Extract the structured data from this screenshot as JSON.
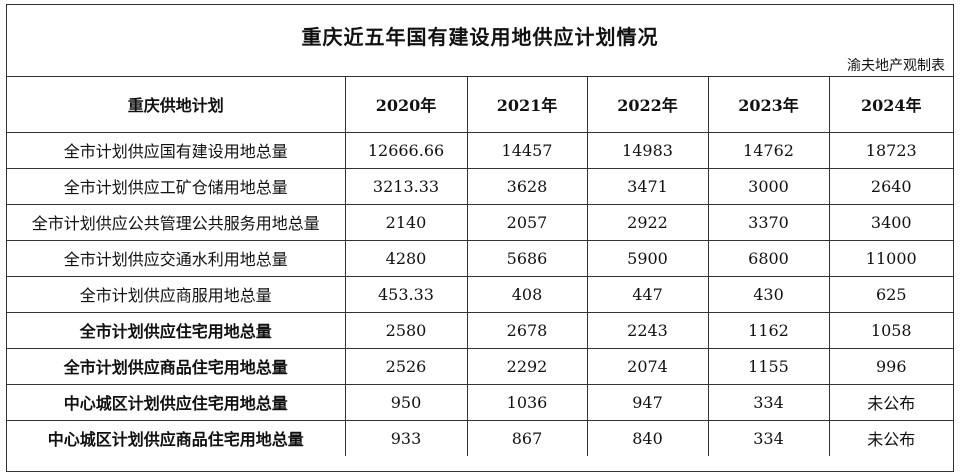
{
  "header": {
    "title": "重庆近五年国有建设用地供应计划情况",
    "credit": "渝夫地产观制表"
  },
  "table": {
    "corner": "重庆供地计划",
    "years": [
      "2020年",
      "2021年",
      "2022年",
      "2023年",
      "2024年"
    ],
    "rows": [
      {
        "label": "全市计划供应国有建设用地总量",
        "bold": false,
        "values": [
          "12666.66",
          "14457",
          "14983",
          "14762",
          "18723"
        ]
      },
      {
        "label": "全市计划供应工矿仓储用地总量",
        "bold": false,
        "values": [
          "3213.33",
          "3628",
          "3471",
          "3000",
          "2640"
        ]
      },
      {
        "label": "全市计划供应公共管理公共服务用地总量",
        "bold": false,
        "values": [
          "2140",
          "2057",
          "2922",
          "3370",
          "3400"
        ]
      },
      {
        "label": "全市计划供应交通水利用地总量",
        "bold": false,
        "values": [
          "4280",
          "5686",
          "5900",
          "6800",
          "11000"
        ]
      },
      {
        "label": "全市计划供应商服用地总量",
        "bold": false,
        "values": [
          "453.33",
          "408",
          "447",
          "430",
          "625"
        ]
      },
      {
        "label": "全市计划供应住宅用地总量",
        "bold": true,
        "values": [
          "2580",
          "2678",
          "2243",
          "1162",
          "1058"
        ]
      },
      {
        "label": "全市计划供应商品住宅用地总量",
        "bold": true,
        "values": [
          "2526",
          "2292",
          "2074",
          "1155",
          "996"
        ]
      },
      {
        "label": "中心城区计划供应住宅用地总量",
        "bold": true,
        "values": [
          "950",
          "1036",
          "947",
          "334",
          "未公布"
        ]
      },
      {
        "label": "中心城区计划供应商品住宅用地总量",
        "bold": true,
        "values": [
          "933",
          "867",
          "840",
          "334",
          "未公布"
        ]
      }
    ]
  }
}
